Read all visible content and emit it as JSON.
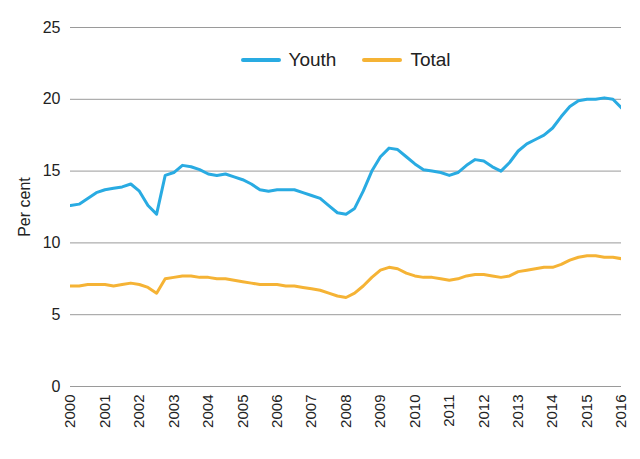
{
  "chart_data": {
    "type": "line",
    "ylabel": "Per cent",
    "x": [
      2000,
      2000.25,
      2000.5,
      2000.75,
      2001,
      2001.25,
      2001.5,
      2001.75,
      2002,
      2002.25,
      2002.5,
      2002.75,
      2003,
      2003.25,
      2003.5,
      2003.75,
      2004,
      2004.25,
      2004.5,
      2004.75,
      2005,
      2005.25,
      2005.5,
      2005.75,
      2006,
      2006.25,
      2006.5,
      2006.75,
      2007,
      2007.25,
      2007.5,
      2007.75,
      2008,
      2008.25,
      2008.5,
      2008.75,
      2009,
      2009.25,
      2009.5,
      2009.75,
      2010,
      2010.25,
      2010.5,
      2010.75,
      2011,
      2011.25,
      2011.5,
      2011.75,
      2012,
      2012.25,
      2012.5,
      2012.75,
      2013,
      2013.25,
      2013.5,
      2013.75,
      2014,
      2014.25,
      2014.5,
      2014.75,
      2015,
      2015.25,
      2015.5,
      2015.75,
      2016
    ],
    "series": [
      {
        "name": "Youth",
        "color": "#29abe2",
        "values": [
          12.6,
          12.7,
          13.1,
          13.5,
          13.7,
          13.8,
          13.9,
          14.1,
          13.6,
          12.6,
          12.0,
          14.7,
          14.9,
          15.4,
          15.3,
          15.1,
          14.8,
          14.7,
          14.8,
          14.6,
          14.4,
          14.1,
          13.7,
          13.6,
          13.7,
          13.7,
          13.7,
          13.5,
          13.3,
          13.1,
          12.6,
          12.1,
          12.0,
          12.4,
          13.6,
          15.0,
          16.0,
          16.6,
          16.5,
          16.0,
          15.5,
          15.1,
          15.0,
          14.9,
          14.7,
          14.9,
          15.4,
          15.8,
          15.7,
          15.3,
          15.0,
          15.6,
          16.4,
          16.9,
          17.2,
          17.5,
          18.0,
          18.8,
          19.5,
          19.9,
          20.0,
          20.0,
          20.1,
          20.0,
          19.4
        ]
      },
      {
        "name": "Total",
        "color": "#f5b335",
        "values": [
          7.0,
          7.0,
          7.1,
          7.1,
          7.1,
          7.0,
          7.1,
          7.2,
          7.1,
          6.9,
          6.5,
          7.5,
          7.6,
          7.7,
          7.7,
          7.6,
          7.6,
          7.5,
          7.5,
          7.4,
          7.3,
          7.2,
          7.1,
          7.1,
          7.1,
          7.0,
          7.0,
          6.9,
          6.8,
          6.7,
          6.5,
          6.3,
          6.2,
          6.5,
          7.0,
          7.6,
          8.1,
          8.3,
          8.2,
          7.9,
          7.7,
          7.6,
          7.6,
          7.5,
          7.4,
          7.5,
          7.7,
          7.8,
          7.8,
          7.7,
          7.6,
          7.7,
          8.0,
          8.1,
          8.2,
          8.3,
          8.3,
          8.5,
          8.8,
          9.0,
          9.1,
          9.1,
          9.0,
          9.0,
          8.9
        ]
      }
    ],
    "xlim": [
      2000,
      2016
    ],
    "xticks": [
      2000,
      2001,
      2002,
      2003,
      2004,
      2005,
      2006,
      2007,
      2008,
      2009,
      2010,
      2011,
      2012,
      2013,
      2014,
      2015,
      2016
    ],
    "ylim": [
      0,
      25
    ],
    "yticks": [
      0,
      5,
      10,
      15,
      20,
      25
    ],
    "grid": true,
    "legend": "top"
  }
}
